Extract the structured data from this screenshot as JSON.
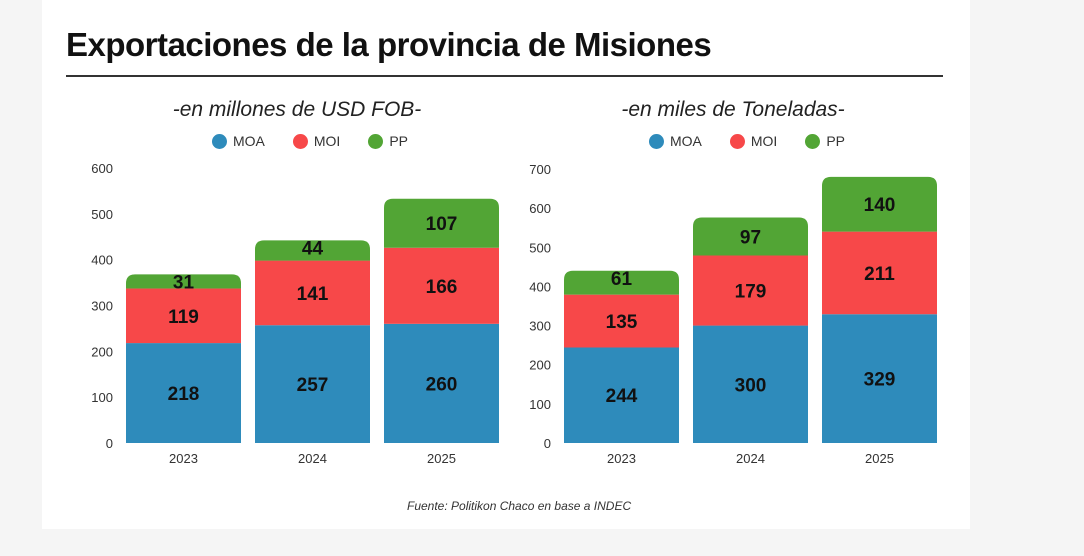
{
  "title": "Exportaciones de la provincia de Misiones",
  "source": "Fuente: Politikon Chaco en base a INDEC",
  "legend": [
    {
      "label": "MOA",
      "color": "#2e8bbb"
    },
    {
      "label": "MOI",
      "color": "#f74849"
    },
    {
      "label": "PP",
      "color": "#52a535"
    }
  ],
  "chart_data": [
    {
      "type": "bar",
      "stacked": true,
      "title": "-en millones de USD FOB-",
      "xlabel": "",
      "ylabel": "",
      "categories": [
        "2023",
        "2024",
        "2025"
      ],
      "series": [
        {
          "name": "MOA",
          "color": "#2e8bbb",
          "values": [
            218,
            257,
            260
          ]
        },
        {
          "name": "MOI",
          "color": "#f74849",
          "values": [
            119,
            141,
            166
          ]
        },
        {
          "name": "PP",
          "color": "#52a535",
          "values": [
            31,
            44,
            107
          ]
        }
      ],
      "ylim": [
        0,
        600
      ],
      "yticks": [
        0,
        100,
        200,
        300,
        400,
        500,
        600
      ],
      "grid": false,
      "legend_position": "top-center"
    },
    {
      "type": "bar",
      "stacked": true,
      "title": "-en miles de Toneladas-",
      "xlabel": "",
      "ylabel": "",
      "categories": [
        "2023",
        "2024",
        "2025"
      ],
      "series": [
        {
          "name": "MOA",
          "color": "#2e8bbb",
          "values": [
            244,
            300,
            329
          ]
        },
        {
          "name": "MOI",
          "color": "#f74849",
          "values": [
            135,
            179,
            211
          ]
        },
        {
          "name": "PP",
          "color": "#52a535",
          "values": [
            61,
            97,
            140
          ]
        }
      ],
      "ylim": [
        0,
        700
      ],
      "yticks": [
        0,
        100,
        200,
        300,
        400,
        500,
        600,
        700
      ],
      "grid": false,
      "legend_position": "top-center"
    }
  ]
}
